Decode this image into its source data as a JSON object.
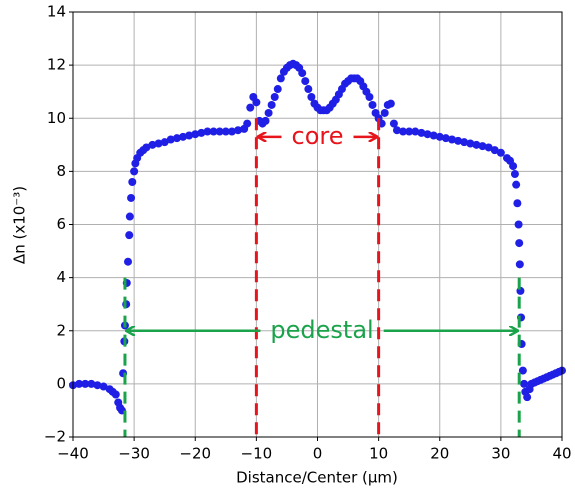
{
  "chart_data": {
    "type": "scatter",
    "x_label": "Distance/Center (μm)",
    "y_label": "Δn (x10⁻³)",
    "color": "#1f1fe6",
    "grid": true,
    "xlim": [
      -40,
      40
    ],
    "ylim": [
      -2,
      14
    ],
    "xticks": [
      {
        "value": -40,
        "label": "−40"
      },
      {
        "value": -30,
        "label": "−30"
      },
      {
        "value": -20,
        "label": "−20"
      },
      {
        "value": -10,
        "label": "−10"
      },
      0,
      10,
      20,
      30,
      40
    ],
    "yticks": [
      {
        "value": -2,
        "label": "−2"
      },
      0,
      2,
      4,
      6,
      8,
      10,
      12,
      14
    ],
    "x": [
      -40,
      -39,
      -38,
      -37,
      -36,
      -35,
      -34,
      -33.5,
      -33,
      -32.6,
      -32.3,
      -32,
      -31.8,
      -31.6,
      -31.5,
      -31.3,
      -31.2,
      -31,
      -30.8,
      -30.7,
      -30.5,
      -30.3,
      -30,
      -29.8,
      -29.5,
      -29,
      -28.5,
      -28,
      -27,
      -26,
      -25,
      -24,
      -23,
      -22,
      -21,
      -20,
      -19,
      -18,
      -17,
      -16,
      -15,
      -14,
      -13,
      -12,
      -11.5,
      -11,
      -10.5,
      -10,
      -9.5,
      -9,
      -8.5,
      -8,
      -7.5,
      -7,
      -6.5,
      -6,
      -5.5,
      -5,
      -4.5,
      -4,
      -3.5,
      -3,
      -2.5,
      -2,
      -1.5,
      -1,
      -0.5,
      0,
      0.5,
      1,
      1.5,
      2,
      2.5,
      3,
      3.5,
      4,
      4.5,
      5,
      5.5,
      6,
      6.5,
      7,
      7.5,
      8,
      8.5,
      9,
      9.5,
      10,
      10.5,
      11,
      11.5,
      12,
      12.5,
      13,
      14,
      15,
      16,
      17,
      18,
      19,
      20,
      21,
      22,
      23,
      24,
      25,
      26,
      27,
      28,
      29,
      30,
      31,
      31.5,
      32,
      32.3,
      32.5,
      32.7,
      32.9,
      33,
      33.1,
      33.2,
      33.3,
      33.4,
      33.6,
      33.8,
      34,
      34.3,
      34.7,
      35,
      35.5,
      36,
      36.5,
      37,
      37.5,
      38,
      38.5,
      39,
      39.5,
      40
    ],
    "values": [
      -0.05,
      0,
      0,
      0,
      -0.05,
      -0.1,
      -0.2,
      -0.3,
      -0.4,
      -0.7,
      -0.9,
      -1.0,
      0.4,
      1.6,
      2.2,
      3.0,
      3.8,
      4.6,
      5.6,
      6.3,
      7.0,
      7.6,
      8.0,
      8.3,
      8.5,
      8.7,
      8.8,
      8.9,
      9.0,
      9.05,
      9.1,
      9.2,
      9.25,
      9.3,
      9.35,
      9.4,
      9.45,
      9.5,
      9.5,
      9.5,
      9.5,
      9.5,
      9.55,
      9.6,
      9.8,
      10.4,
      10.8,
      10.6,
      9.9,
      9.8,
      9.9,
      10.2,
      10.5,
      10.8,
      11.1,
      11.5,
      11.75,
      11.9,
      12.0,
      12.05,
      12.0,
      11.9,
      11.7,
      11.4,
      11.1,
      10.8,
      10.55,
      10.4,
      10.3,
      10.3,
      10.3,
      10.4,
      10.55,
      10.7,
      10.9,
      11.1,
      11.3,
      11.4,
      11.5,
      11.5,
      11.5,
      11.4,
      11.2,
      11.0,
      10.8,
      10.5,
      10.2,
      10.0,
      9.8,
      10.2,
      10.5,
      10.55,
      9.8,
      9.55,
      9.5,
      9.5,
      9.5,
      9.45,
      9.4,
      9.35,
      9.3,
      9.25,
      9.2,
      9.15,
      9.1,
      9.05,
      9.0,
      8.95,
      8.9,
      8.8,
      8.7,
      8.5,
      8.4,
      8.2,
      7.9,
      7.5,
      6.8,
      6.0,
      5.3,
      4.5,
      3.5,
      2.5,
      1.5,
      0.5,
      0.0,
      -0.3,
      -0.5,
      -0.2,
      0.0,
      0.05,
      0.1,
      0.15,
      0.2,
      0.25,
      0.3,
      0.35,
      0.4,
      0.45,
      0.5
    ],
    "annotations": [
      {
        "text": "core",
        "color": "#e8141c",
        "x": [
          -10,
          10
        ],
        "y": 9.3,
        "line_top": 10
      },
      {
        "text": "pedestal",
        "color": "#1aa34a",
        "x": [
          -31.5,
          33
        ],
        "y": 2,
        "line_top": 4
      }
    ]
  }
}
